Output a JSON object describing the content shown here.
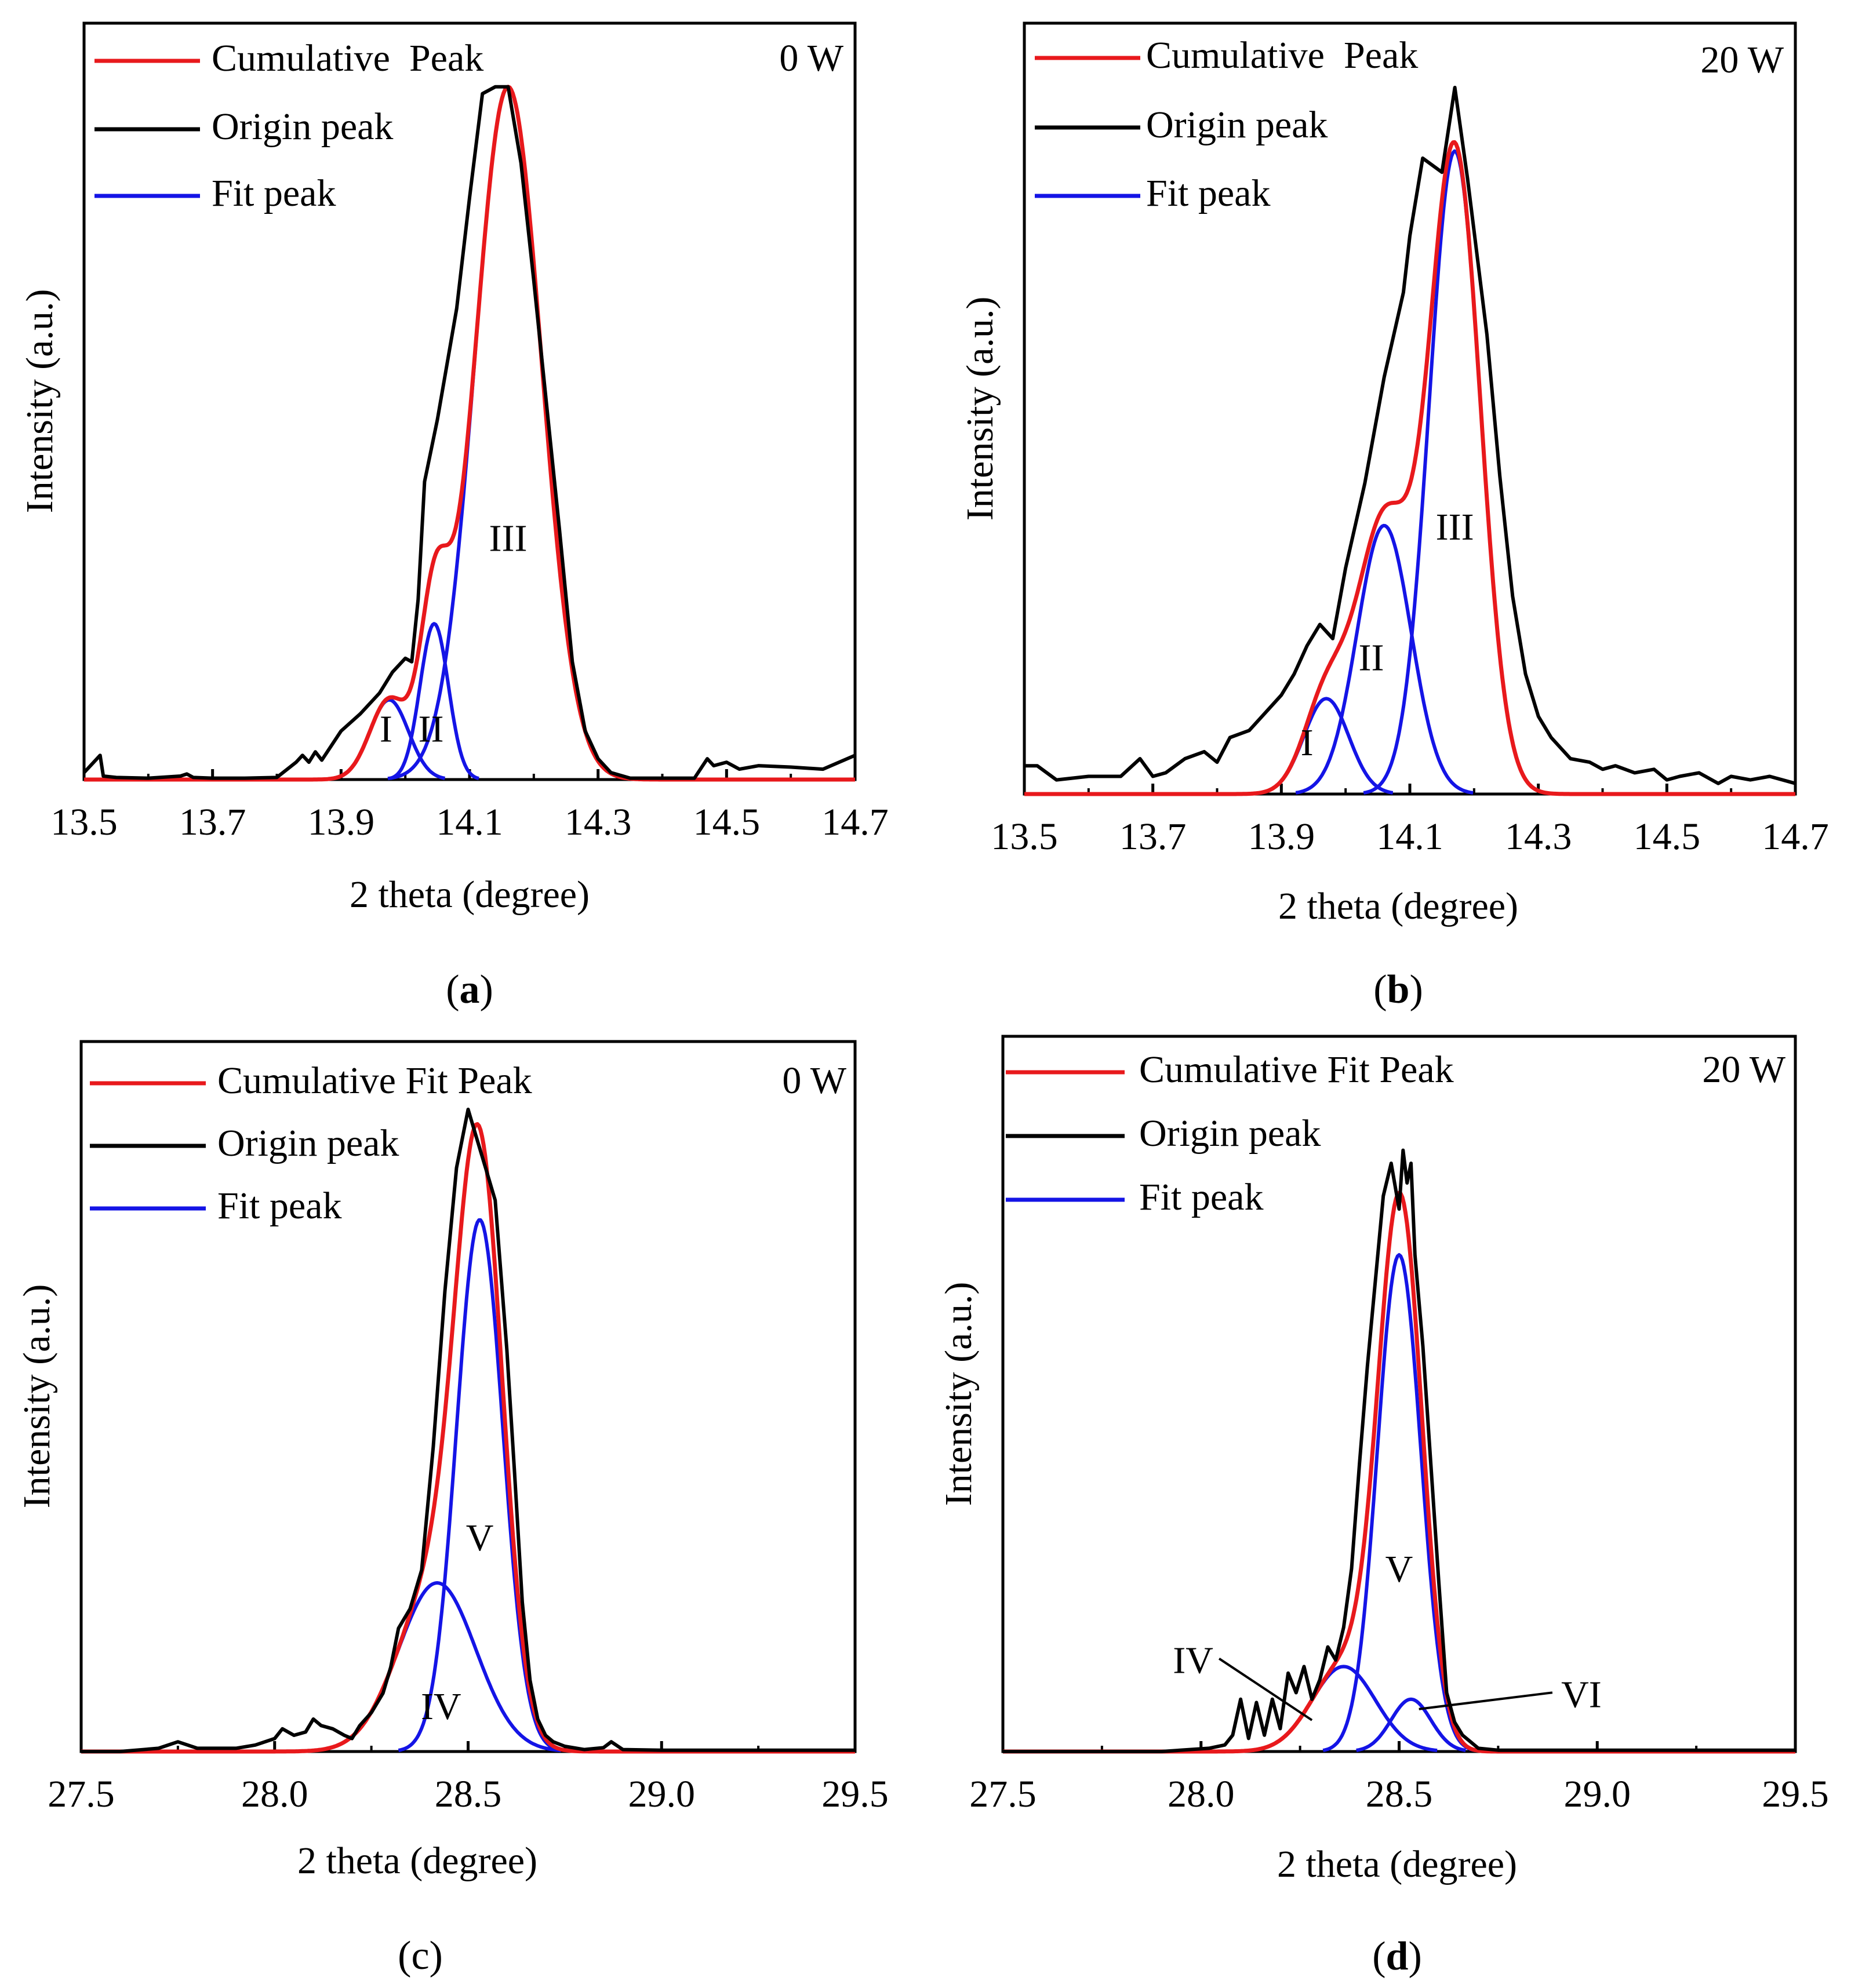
{
  "figure": {
    "panels": [
      {
        "id": "a",
        "label": "a"
      },
      {
        "id": "b",
        "label": "b"
      },
      {
        "id": "c",
        "label": "c"
      },
      {
        "id": "d",
        "label": "d"
      }
    ]
  },
  "colors": {
    "cumulative": "#e8191c",
    "origin": "#000000",
    "fit": "#1414e6"
  },
  "chart_data": [
    {
      "id": "a",
      "panel_label": "a",
      "type": "line",
      "power_label": "0 W",
      "xlabel": "2 theta (degree)",
      "ylabel": "Intensity (a.u.)",
      "xlim": [
        13.5,
        14.7
      ],
      "ylim": [
        0,
        105
      ],
      "xticks": [
        13.5,
        13.7,
        13.9,
        14.1,
        14.3,
        14.5,
        14.7
      ],
      "xtick_labels": [
        "13.5",
        "13.7",
        "13.9",
        "14.1",
        "14.3",
        "14.5",
        "14.7"
      ],
      "legend": [
        "Cumulative  Peak",
        "Origin peak",
        "Fit peak"
      ],
      "peak_labels": [
        {
          "text": "I",
          "x": 13.97,
          "y": 5.5
        },
        {
          "text": "II",
          "x": 14.04,
          "y": 5.5
        },
        {
          "text": "III",
          "x": 14.16,
          "y": 33
        }
      ],
      "fit_peaks": [
        {
          "name": "I",
          "center": 13.975,
          "height": 11.5,
          "sigma": 0.03
        },
        {
          "name": "II",
          "center": 14.045,
          "height": 22.5,
          "sigma": 0.022
        },
        {
          "name": "III",
          "center": 14.16,
          "height": 100,
          "sigma": 0.052
        }
      ],
      "origin_peak": {
        "x": [
          13.5,
          13.51,
          13.525,
          13.53,
          13.55,
          13.6,
          13.65,
          13.66,
          13.67,
          13.7,
          13.75,
          13.8,
          13.83,
          13.84,
          13.85,
          13.86,
          13.87,
          13.9,
          13.93,
          13.96,
          13.98,
          14.0,
          14.01,
          14.02,
          14.03,
          14.05,
          14.08,
          14.1,
          14.12,
          14.14,
          14.16,
          14.18,
          14.2,
          14.22,
          14.24,
          14.26,
          14.28,
          14.3,
          14.32,
          14.35,
          14.4,
          14.45,
          14.47,
          14.48,
          14.5,
          14.52,
          14.55,
          14.6,
          14.65,
          14.7
        ],
        "y": [
          1.0,
          2.0,
          3.5,
          0.5,
          0.3,
          0.2,
          0.5,
          0.8,
          0.3,
          0.2,
          0.2,
          0.3,
          2.5,
          3.5,
          2.5,
          4.0,
          2.8,
          7.0,
          9.5,
          12.5,
          15.5,
          17.5,
          17.0,
          26.0,
          43.0,
          52.0,
          68.0,
          84.0,
          99.0,
          100.0,
          100.0,
          89.0,
          72.0,
          54.0,
          36.0,
          17.0,
          7.0,
          3.0,
          1.0,
          0.2,
          0.2,
          0.2,
          3.0,
          2.0,
          2.5,
          1.5,
          2.0,
          1.8,
          1.5,
          3.5
        ]
      }
    },
    {
      "id": "b",
      "panel_label": "b",
      "type": "line",
      "power_label": "20 W",
      "xlabel": "2 theta (degree)",
      "ylabel": "Intensity (a.u.)",
      "xlim": [
        13.5,
        14.7
      ],
      "ylim": [
        0,
        105
      ],
      "xticks": [
        13.5,
        13.7,
        13.9,
        14.1,
        14.3,
        14.5,
        14.7
      ],
      "xtick_labels": [
        "13.5",
        "13.7",
        "13.9",
        "14.1",
        "14.3",
        "14.5",
        "14.7"
      ],
      "legend": [
        "Cumulative  Peak",
        "Origin peak",
        "Fit peak"
      ],
      "peak_labels": [
        {
          "text": "I",
          "x": 13.94,
          "y": 5.5
        },
        {
          "text": "II",
          "x": 14.04,
          "y": 17.5
        },
        {
          "text": "III",
          "x": 14.17,
          "y": 36
        }
      ],
      "fit_peaks": [
        {
          "name": "I",
          "center": 13.97,
          "height": 13.5,
          "sigma": 0.035
        },
        {
          "name": "II",
          "center": 14.06,
          "height": 38,
          "sigma": 0.042
        },
        {
          "name": "III",
          "center": 14.17,
          "height": 91,
          "sigma": 0.04
        }
      ],
      "origin_peak": {
        "x": [
          13.5,
          13.52,
          13.55,
          13.6,
          13.65,
          13.68,
          13.7,
          13.72,
          13.75,
          13.78,
          13.8,
          13.82,
          13.85,
          13.88,
          13.9,
          13.92,
          13.94,
          13.96,
          13.98,
          14.0,
          14.03,
          14.06,
          14.09,
          14.1,
          14.12,
          14.15,
          14.17,
          14.19,
          14.22,
          14.24,
          14.26,
          14.28,
          14.3,
          14.32,
          14.35,
          14.38,
          14.4,
          14.42,
          14.45,
          14.48,
          14.5,
          14.52,
          14.55,
          14.58,
          14.6,
          14.63,
          14.66,
          14.7
        ],
        "y": [
          4.0,
          4.0,
          2.0,
          2.5,
          2.5,
          5.0,
          2.5,
          3.0,
          5.0,
          6.0,
          4.5,
          8.0,
          9.0,
          12.0,
          14.0,
          17.0,
          21.0,
          24.0,
          22.0,
          32.0,
          44.0,
          59.0,
          71.0,
          79.0,
          90.0,
          88.0,
          100.0,
          87.0,
          65.0,
          45.0,
          28.0,
          17.0,
          11.0,
          8.0,
          5.0,
          4.5,
          3.5,
          4.0,
          3.0,
          3.5,
          2.0,
          2.5,
          3.0,
          1.5,
          2.5,
          2.0,
          2.5,
          1.5
        ]
      }
    },
    {
      "id": "c",
      "panel_label": "c",
      "type": "line",
      "power_label": "0 W",
      "xlabel": "2 theta (degree)",
      "ylabel": "Intensity (a.u.)",
      "xlim": [
        27.5,
        29.5
      ],
      "ylim": [
        0,
        105
      ],
      "xticks": [
        27.5,
        28.0,
        28.5,
        29.0,
        29.5
      ],
      "xtick_labels": [
        "27.5",
        "28.0",
        "28.5",
        "29.0",
        "29.5"
      ],
      "legend": [
        "Cumulative Fit Peak",
        "Origin peak",
        "Fit peak"
      ],
      "peak_labels": [
        {
          "text": "V",
          "x": 28.53,
          "y": 31
        },
        {
          "text": "IV",
          "x": 28.43,
          "y": 5
        }
      ],
      "fit_peaks": [
        {
          "name": "IV",
          "center": 28.42,
          "height": 26,
          "sigma": 0.1
        },
        {
          "name": "V",
          "center": 28.53,
          "height": 82,
          "sigma": 0.06
        }
      ],
      "origin_peak": {
        "x": [
          27.5,
          27.6,
          27.7,
          27.75,
          27.8,
          27.9,
          27.95,
          28.0,
          28.02,
          28.05,
          28.08,
          28.1,
          28.12,
          28.15,
          28.18,
          28.2,
          28.22,
          28.25,
          28.28,
          28.3,
          28.32,
          28.35,
          28.38,
          28.41,
          28.44,
          28.47,
          28.5,
          28.52,
          28.55,
          28.57,
          28.6,
          28.62,
          28.64,
          28.66,
          28.68,
          28.7,
          28.72,
          28.75,
          28.8,
          28.85,
          28.87,
          28.9,
          29.0,
          29.2,
          29.5
        ],
        "y": [
          0.0,
          0.0,
          0.5,
          1.5,
          0.5,
          0.5,
          1.0,
          2.0,
          3.5,
          2.5,
          3.0,
          5.0,
          4.0,
          3.5,
          2.5,
          2.0,
          4.0,
          6.0,
          9.0,
          13.0,
          19.0,
          22.0,
          28.0,
          47.0,
          71.0,
          90.0,
          99.0,
          95.0,
          89.0,
          85.0,
          62.0,
          43.0,
          23.0,
          11.0,
          5.0,
          2.5,
          1.5,
          0.8,
          0.3,
          0.6,
          1.5,
          0.3,
          0.2,
          0.2,
          0.2
        ]
      }
    },
    {
      "id": "d",
      "panel_label": "d",
      "type": "line",
      "power_label": "20 W",
      "xlabel": "2 theta (degree)",
      "ylabel": "Intensity (a.u.)",
      "xlim": [
        27.5,
        29.5
      ],
      "ylim": [
        0,
        105
      ],
      "xticks": [
        27.5,
        28.0,
        28.5,
        29.0,
        29.5
      ],
      "xtick_labels": [
        "27.5",
        "28.0",
        "28.5",
        "29.0",
        "29.5"
      ],
      "legend": [
        "Cumulative Fit Peak",
        "Origin peak",
        "Fit peak"
      ],
      "peak_labels": [
        {
          "text": "V",
          "x": 28.5,
          "y": 26
        },
        {
          "text": "IV",
          "x": 27.98,
          "y": 12,
          "arrow_to": [
            28.28,
            4.8
          ]
        },
        {
          "text": "VI",
          "x": 28.96,
          "y": 6.8,
          "arrow_to": [
            28.55,
            6.5
          ]
        }
      ],
      "fit_peaks": [
        {
          "name": "IV",
          "center": 28.36,
          "height": 13,
          "sigma": 0.08
        },
        {
          "name": "V",
          "center": 28.5,
          "height": 76,
          "sigma": 0.055
        },
        {
          "name": "VI",
          "center": 28.53,
          "height": 8,
          "sigma": 0.05
        }
      ],
      "origin_peak": {
        "x": [
          27.5,
          27.9,
          28.02,
          28.06,
          28.08,
          28.1,
          28.12,
          28.14,
          28.16,
          28.18,
          28.2,
          28.22,
          28.24,
          28.26,
          28.28,
          28.3,
          28.32,
          28.34,
          28.36,
          28.38,
          28.4,
          28.42,
          28.44,
          28.46,
          28.48,
          28.5,
          28.51,
          28.52,
          28.53,
          28.54,
          28.56,
          28.58,
          28.6,
          28.62,
          28.64,
          28.66,
          28.68,
          28.7,
          28.75,
          29.0,
          29.5
        ],
        "y": [
          0.0,
          0.0,
          0.5,
          1.0,
          2.5,
          8.0,
          2.0,
          7.5,
          2.5,
          8.0,
          3.5,
          12.0,
          9.0,
          13.0,
          8.0,
          11.0,
          16.0,
          14.0,
          19.0,
          28.0,
          44.0,
          59.0,
          72.0,
          85.0,
          90.0,
          83.0,
          92.0,
          87.0,
          90.0,
          76.0,
          62.0,
          44.0,
          26.0,
          9.0,
          4.5,
          2.5,
          1.5,
          0.5,
          0.2,
          0.2,
          0.2
        ]
      }
    }
  ]
}
